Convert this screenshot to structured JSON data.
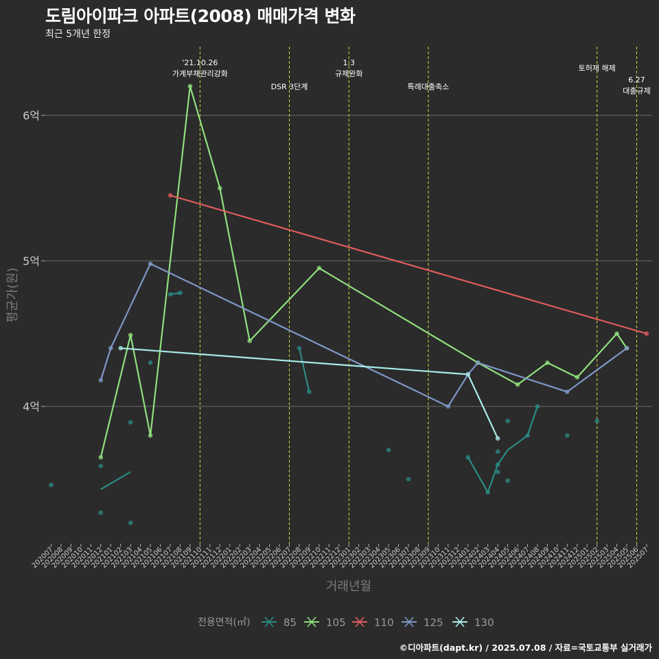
{
  "header": {
    "title": "도림아이파크 아파트(2008) 매매가격 변화",
    "subtitle": "최근 5개년 한정"
  },
  "caption": "©디아파트(dapt.kr) / 2025.07.08 / 자료=국토교통부 실거래가",
  "colors": {
    "background": "#2b2b2b",
    "grid": "#6b6b6b",
    "vline": "#d8d83a",
    "s85": "#2b8c85",
    "s105": "#90e07e",
    "s110": "#e15b5e",
    "s125": "#7f98c9",
    "s130": "#a9ece8"
  },
  "chart_data": {
    "type": "line",
    "title": "도림아이파크 아파트(2008) 매매가격 변화",
    "subtitle": "최근 5개년 한정",
    "xlabel": "거래년월",
    "ylabel": "평균가(원)",
    "ylim": [
      3.0,
      6.4
    ],
    "yticks": [
      {
        "value": 4,
        "label": "4억"
      },
      {
        "value": 5,
        "label": "5억"
      },
      {
        "value": 6,
        "label": "6억"
      }
    ],
    "categories": [
      "202007",
      "202008",
      "202009",
      "202010",
      "202011",
      "202012",
      "202101",
      "202102",
      "202103",
      "202104",
      "202105",
      "202106",
      "202107",
      "202108",
      "202109",
      "202110",
      "202111",
      "202112",
      "202201",
      "202202",
      "202203",
      "202204",
      "202205",
      "202206",
      "202207",
      "202208",
      "202209",
      "202210",
      "202211",
      "202212",
      "202301",
      "202302",
      "202303",
      "202304",
      "202305",
      "202306",
      "202307",
      "202308",
      "202309",
      "202310",
      "202311",
      "202312",
      "202401",
      "202402",
      "202403",
      "202404",
      "202405",
      "202406",
      "202407",
      "202408",
      "202409",
      "202410",
      "202411",
      "202412",
      "202501",
      "202502",
      "202503",
      "202504",
      "202505",
      "202506",
      "202507"
    ],
    "legend": {
      "title": "전용면적(㎡)",
      "position": "bottom",
      "items": [
        "85",
        "105",
        "110",
        "125",
        "130"
      ]
    },
    "annotations": [
      {
        "x": "202110",
        "lines": [
          "'21.10.26",
          "가계부채관리강화"
        ],
        "level": "high"
      },
      {
        "x": "202207",
        "lines": [
          "DSR 3단계"
        ],
        "level": "low"
      },
      {
        "x": "202301",
        "lines": [
          "1.3",
          "규제완화"
        ],
        "level": "high"
      },
      {
        "x": "202309",
        "lines": [
          "특례대출축소"
        ],
        "level": "low"
      },
      {
        "x": "202502",
        "lines": [
          "토허제 해제"
        ],
        "level": "mid"
      },
      {
        "x": "202506",
        "lines": [
          "6.27",
          "대출규제"
        ],
        "level": "low2"
      }
    ],
    "series": [
      {
        "name": "85",
        "color": "#2b8c85",
        "segments": [
          [
            [
              "202012",
              3.43
            ],
            [
              "202103",
              3.55
            ]
          ],
          [
            [
              "202107",
              4.77
            ],
            [
              "202108",
              4.78
            ]
          ],
          [
            [
              "202208",
              4.4
            ],
            [
              "202209",
              4.1
            ]
          ],
          [
            [
              "202401",
              3.65
            ],
            [
              "202403",
              3.41
            ],
            [
              "202404",
              3.6
            ],
            [
              "202405",
              3.7
            ],
            [
              "202407",
              3.8
            ],
            [
              "202408",
              4.0
            ]
          ]
        ],
        "points": [
          [
            "202007",
            3.46
          ],
          [
            "202012",
            3.59
          ],
          [
            "202012",
            3.27
          ],
          [
            "202103",
            3.2
          ],
          [
            "202103",
            3.89
          ],
          [
            "202105",
            4.3
          ],
          [
            "202107",
            4.77
          ],
          [
            "202108",
            4.78
          ],
          [
            "202208",
            4.4
          ],
          [
            "202209",
            4.1
          ],
          [
            "202305",
            3.7
          ],
          [
            "202307",
            3.5
          ],
          [
            "202401",
            3.65
          ],
          [
            "202403",
            3.41
          ],
          [
            "202404",
            3.55
          ],
          [
            "202404",
            3.6
          ],
          [
            "202404",
            3.69
          ],
          [
            "202405",
            3.49
          ],
          [
            "202405",
            3.9
          ],
          [
            "202407",
            3.8
          ],
          [
            "202408",
            4.0
          ],
          [
            "202411",
            3.8
          ],
          [
            "202502",
            3.9
          ]
        ]
      },
      {
        "name": "105",
        "color": "#90e07e",
        "segments": [
          [
            [
              "202012",
              3.65
            ],
            [
              "202103",
              4.49
            ],
            [
              "202105",
              3.8
            ],
            [
              "202109",
              6.2
            ],
            [
              "202112",
              5.5
            ],
            [
              "202203",
              4.45
            ],
            [
              "202210",
              4.95
            ],
            [
              "202402",
              4.3
            ],
            [
              "202406",
              4.15
            ],
            [
              "202409",
              4.3
            ],
            [
              "202412",
              4.2
            ],
            [
              "202504",
              4.5
            ],
            [
              "202505",
              4.4
            ]
          ]
        ],
        "points": [
          [
            "202012",
            3.65
          ],
          [
            "202103",
            4.49
          ],
          [
            "202105",
            3.8
          ],
          [
            "202109",
            6.2
          ],
          [
            "202112",
            5.5
          ],
          [
            "202203",
            4.45
          ],
          [
            "202210",
            4.95
          ],
          [
            "202402",
            4.3
          ],
          [
            "202406",
            4.15
          ],
          [
            "202409",
            4.3
          ],
          [
            "202412",
            4.2
          ],
          [
            "202504",
            4.5
          ],
          [
            "202505",
            4.4
          ]
        ]
      },
      {
        "name": "110",
        "color": "#e15b5e",
        "segments": [
          [
            [
              "202107",
              5.45
            ],
            [
              "202507",
              4.5
            ]
          ]
        ],
        "points": [
          [
            "202107",
            5.45
          ],
          [
            "202507",
            4.5
          ]
        ]
      },
      {
        "name": "125",
        "color": "#7f98c9",
        "segments": [
          [
            [
              "202012",
              4.18
            ],
            [
              "202101",
              4.4
            ],
            [
              "202105",
              4.98
            ],
            [
              "202311",
              4.0
            ],
            [
              "202401",
              4.22
            ],
            [
              "202402",
              4.3
            ],
            [
              "202411",
              4.1
            ],
            [
              "202505",
              4.4
            ]
          ]
        ],
        "points": [
          [
            "202012",
            4.18
          ],
          [
            "202101",
            4.4
          ],
          [
            "202105",
            4.98
          ],
          [
            "202311",
            4.0
          ],
          [
            "202401",
            4.22
          ],
          [
            "202402",
            4.3
          ],
          [
            "202411",
            4.1
          ],
          [
            "202505",
            4.4
          ]
        ]
      },
      {
        "name": "130",
        "color": "#a9ece8",
        "segments": [
          [
            [
              "202102",
              4.4
            ],
            [
              "202401",
              4.22
            ],
            [
              "202404",
              3.78
            ]
          ]
        ],
        "points": [
          [
            "202102",
            4.4
          ],
          [
            "202401",
            4.22
          ],
          [
            "202404",
            3.78
          ]
        ]
      }
    ]
  }
}
